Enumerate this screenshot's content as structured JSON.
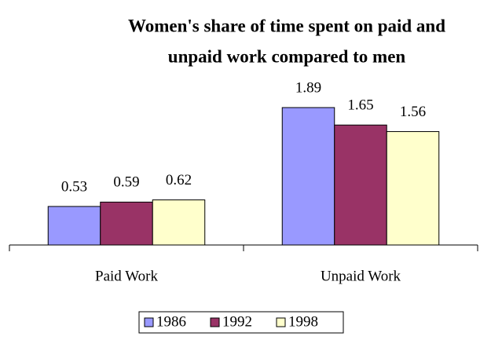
{
  "chart_data": {
    "type": "bar",
    "title": [
      "Women's share of time spent on paid and",
      "unpaid work compared to men"
    ],
    "categories": [
      "Paid Work",
      "Unpaid Work"
    ],
    "series": [
      {
        "name": "1986",
        "color": "#9999ff",
        "values": [
          0.53,
          1.89
        ]
      },
      {
        "name": "1992",
        "color": "#993366",
        "values": [
          0.59,
          1.65
        ]
      },
      {
        "name": "1998",
        "color": "#ffffcc",
        "values": [
          0.62,
          1.56
        ]
      }
    ],
    "legend": "bottom"
  }
}
